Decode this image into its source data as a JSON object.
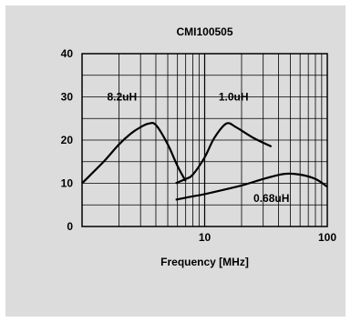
{
  "chart_data": {
    "type": "line",
    "title": "CMI100505",
    "xlabel": "Frequency [MHz]",
    "ylabel": "",
    "x_scale": "log",
    "xlim": [
      1,
      100
    ],
    "ylim": [
      0,
      40
    ],
    "x_ticks": [
      {
        "value": 10,
        "label": "10"
      },
      {
        "value": 100,
        "label": "100"
      }
    ],
    "y_ticks": [
      {
        "value": 0,
        "label": "0"
      },
      {
        "value": 10,
        "label": "10"
      },
      {
        "value": 20,
        "label": "20"
      },
      {
        "value": 30,
        "label": "30"
      },
      {
        "value": 40,
        "label": "40"
      }
    ],
    "grid": true,
    "series": [
      {
        "name": "8.2uH",
        "label_at": [
          1.6,
          30
        ],
        "points": [
          [
            1,
            10
          ],
          [
            1.5,
            15
          ],
          [
            2,
            19
          ],
          [
            2.5,
            21.5
          ],
          [
            3,
            23
          ],
          [
            3.5,
            23.8
          ],
          [
            4,
            23.5
          ],
          [
            5,
            19
          ],
          [
            6,
            14
          ],
          [
            7,
            10.5
          ]
        ]
      },
      {
        "name": "1.0uH",
        "label_at": [
          13,
          30
        ],
        "points": [
          [
            5.8,
            10
          ],
          [
            7,
            11
          ],
          [
            8,
            12
          ],
          [
            10,
            16
          ],
          [
            12,
            20.5
          ],
          [
            15,
            23.8
          ],
          [
            18,
            23
          ],
          [
            25,
            20.5
          ],
          [
            35,
            18.5
          ]
        ]
      },
      {
        "name": "0.68uH",
        "label_at": [
          25,
          6.5
        ],
        "points": [
          [
            5.8,
            6.2
          ],
          [
            8,
            7
          ],
          [
            10,
            7.5
          ],
          [
            20,
            9.5
          ],
          [
            30,
            11
          ],
          [
            45,
            12.2
          ],
          [
            60,
            12
          ],
          [
            80,
            11
          ],
          [
            100,
            9.2
          ]
        ]
      }
    ]
  }
}
